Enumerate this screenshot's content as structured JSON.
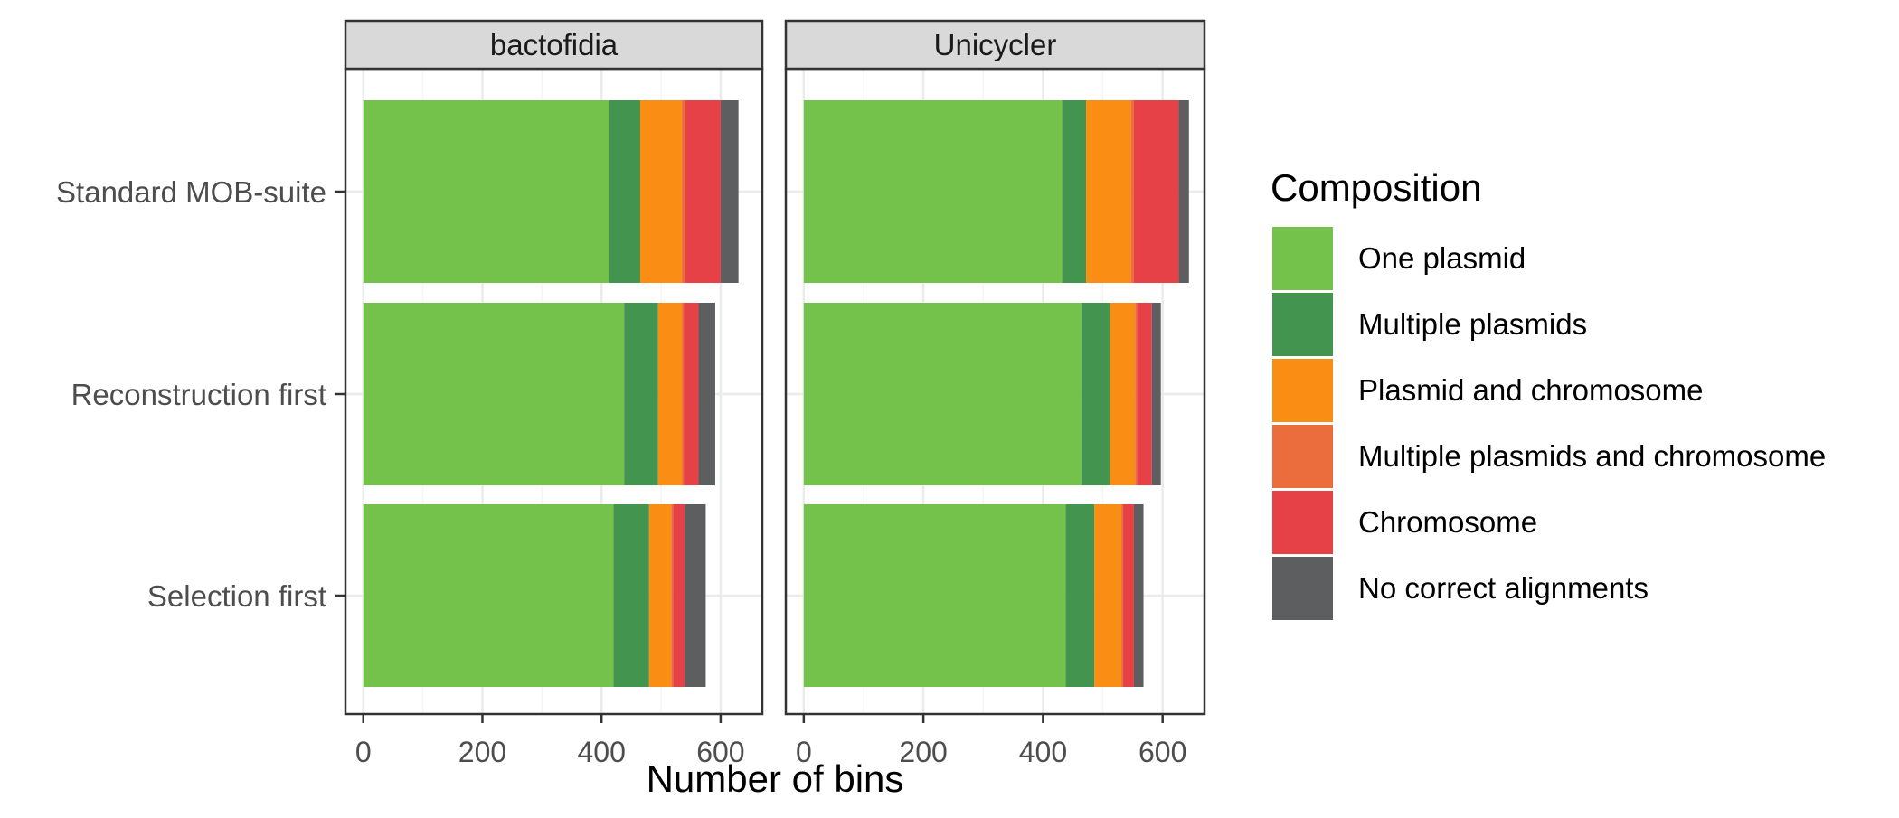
{
  "chart_data": {
    "type": "bar",
    "orientation": "horizontal",
    "stacked": true,
    "title": "",
    "xlabel": "Number of bins",
    "ylabel": "",
    "xlim": [
      -30,
      670
    ],
    "xticks": [
      0,
      200,
      400,
      600
    ],
    "grid": true,
    "facets": [
      "bactofidia",
      "Unicycler"
    ],
    "categories": [
      "Standard MOB-suite",
      "Reconstruction first",
      "Selection first"
    ],
    "legend": {
      "title": "Composition",
      "position": "right"
    },
    "series": [
      {
        "name": "One plasmid",
        "color": "#74c14b",
        "values": {
          "bactofidia": [
            413,
            438,
            420
          ],
          "Unicycler": [
            432,
            464,
            438
          ]
        }
      },
      {
        "name": "Multiple plasmids",
        "color": "#43944f",
        "values": {
          "bactofidia": [
            52,
            57,
            60
          ],
          "Unicycler": [
            40,
            48,
            48
          ]
        }
      },
      {
        "name": "Plasmid and chromosome",
        "color": "#fa8d14",
        "values": {
          "bactofidia": [
            70,
            40,
            37
          ],
          "Unicycler": [
            75,
            42,
            45
          ]
        }
      },
      {
        "name": "Multiple plasmids and chromosome",
        "color": "#eb6d3d",
        "values": {
          "bactofidia": [
            5,
            3,
            3
          ],
          "Unicycler": [
            5,
            3,
            3
          ]
        }
      },
      {
        "name": "Chromosome",
        "color": "#e54146",
        "values": {
          "bactofidia": [
            60,
            25,
            20
          ],
          "Unicycler": [
            75,
            25,
            18
          ]
        }
      },
      {
        "name": "No correct alignments",
        "color": "#5d5e60",
        "values": {
          "bactofidia": [
            30,
            28,
            35
          ],
          "Unicycler": [
            17,
            15,
            16
          ]
        }
      }
    ]
  },
  "colors": {
    "strip_background": "#d9d9d9",
    "panel_border": "#333333",
    "grid_major": "#ebebeb",
    "grid_minor": "#f5f5f5",
    "axis_text": "#4d4d4d"
  }
}
